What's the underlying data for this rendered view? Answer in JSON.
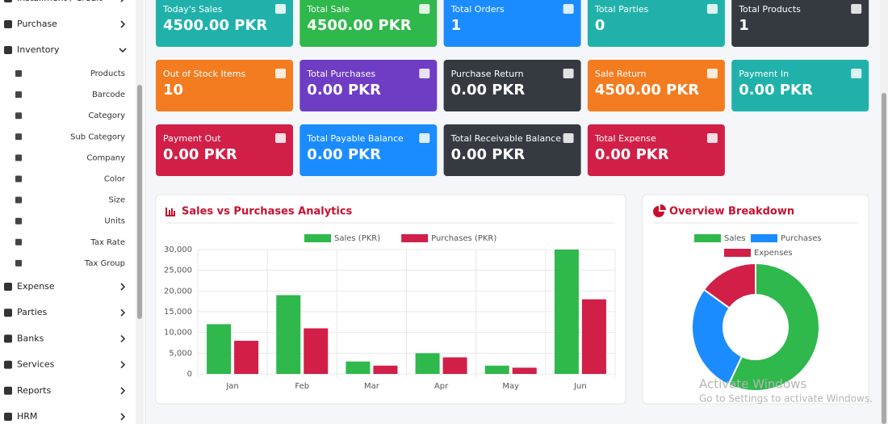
{
  "sidebar": {
    "top": [
      "Installment / Credit",
      "Purchase",
      "Inventory"
    ],
    "submenu": [
      "Products",
      "Barcode",
      "Category",
      "Sub Category",
      "Company",
      "Color",
      "Size",
      "Units",
      "Tax Rate",
      "Tax Group"
    ],
    "bottom": [
      "Expense",
      "Parties",
      "Banks",
      "Services",
      "Reports",
      "HRM"
    ]
  },
  "cards": [
    {
      "title": "Today's Sales",
      "value": "4500.00 PKR",
      "color": "#20b2aa"
    },
    {
      "title": "Total Sale",
      "value": "4500.00 PKR",
      "color": "#2fb84b"
    },
    {
      "title": "Total Orders",
      "value": "1",
      "color": "#1a8cff"
    },
    {
      "title": "Total Parties",
      "value": "0",
      "color": "#20b2aa"
    },
    {
      "title": "Total Products",
      "value": "1",
      "color": "#343a40"
    },
    {
      "title": "Out of Stock Items",
      "value": "10",
      "color": "#f47c20"
    },
    {
      "title": "Total Purchases",
      "value": "0.00 PKR",
      "color": "#6f3cc4"
    },
    {
      "title": "Purchase Return",
      "value": "0.00 PKR",
      "color": "#343a40"
    },
    {
      "title": "Sale Return",
      "value": "4500.00 PKR",
      "color": "#f47c20"
    },
    {
      "title": "Payment In",
      "value": "0.00 PKR",
      "color": "#20b2aa"
    },
    {
      "title": "Payment Out",
      "value": "0.00 PKR",
      "color": "#d11f48"
    },
    {
      "title": "Total Payable Balance",
      "value": "0.00 PKR",
      "color": "#1a8cff"
    },
    {
      "title": "Total Receivable Balance",
      "value": "0.00 PKR",
      "color": "#343a40"
    },
    {
      "title": "Total Expense",
      "value": "0.00 PKR",
      "color": "#d11f48"
    }
  ],
  "chart_data": [
    {
      "type": "bar",
      "title": "Sales vs Purchases Analytics",
      "categories": [
        "Jan",
        "Feb",
        "Mar",
        "Apr",
        "May",
        "Jun"
      ],
      "series": [
        {
          "name": "Sales (PKR)",
          "color": "#2fb84b",
          "values": [
            12000,
            19000,
            3000,
            5000,
            2000,
            30000
          ]
        },
        {
          "name": "Purchases (PKR)",
          "color": "#d11f48",
          "values": [
            8000,
            11000,
            2000,
            4000,
            1500,
            18000
          ]
        }
      ],
      "ylim": [
        0,
        30000
      ],
      "yticks": [
        0,
        {
          "value": 5000,
          "label": "5,000"
        },
        {
          "value": 10000,
          "label": "10,000"
        },
        {
          "value": 15000,
          "label": "15,000"
        },
        {
          "value": 20000,
          "label": "20,000"
        },
        {
          "value": 25000,
          "label": "25,000"
        },
        {
          "value": 30000,
          "label": "30,000"
        }
      ],
      "grid": true,
      "legend": "top"
    },
    {
      "type": "doughnut",
      "title": "Overview Breakdown",
      "categories": [
        "Sales",
        "Purchases",
        "Expenses"
      ],
      "values": [
        57,
        28,
        15
      ],
      "colors": [
        "#2fb84b",
        "#1a8cff",
        "#d11f48"
      ],
      "legend": "top"
    }
  ],
  "watermark": {
    "title": "Activate Windows",
    "subtitle": "Go to Settings to activate Windows."
  }
}
